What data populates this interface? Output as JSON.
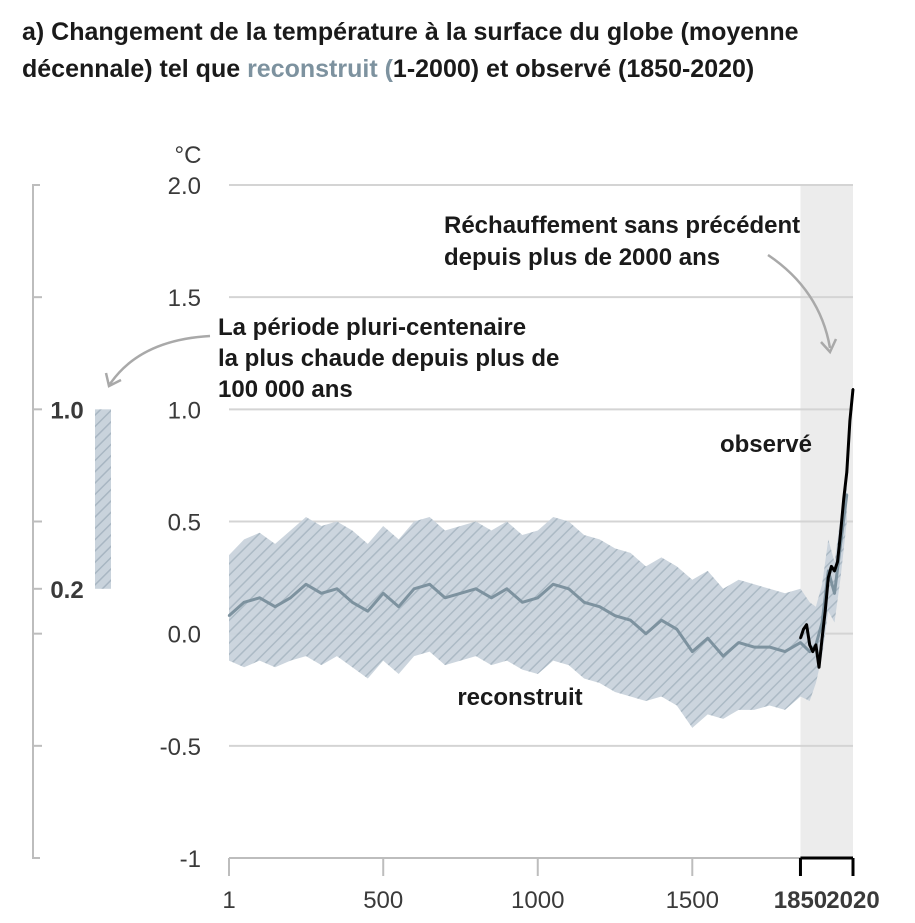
{
  "title": {
    "line1": "a) Changement de la température à la surface du globe (moyenne",
    "line2_pre": "décennale) tel que ",
    "line2_highlight": "reconstruit (",
    "line2_post": "1-2000) et observé (1850-2020)"
  },
  "colors": {
    "reconstructed": "#7d929f",
    "band_fill": "#c9d3dc",
    "band_hatch": "#a8b6c2",
    "observed": "#000000",
    "shaded_period": "#ececec",
    "grid": "#d4d4d4",
    "axis": "#bdbdbd"
  },
  "chart_data": {
    "type": "line",
    "title": "a) Changement de la température à la surface du globe (moyenne décennale) tel que reconstruit (1-2000) et observé (1850-2020)",
    "unit": "°C",
    "xlim": [
      1,
      2020
    ],
    "ylim": [
      -1,
      2
    ],
    "yticks": [
      "2.0",
      "1.5",
      "1.0",
      "0.5",
      "0.0",
      "-0.5",
      "-1"
    ],
    "xticks": [
      "1",
      "500",
      "1000",
      "1500",
      "1850",
      "2020"
    ],
    "grid": true,
    "shaded_period": [
      1850,
      2020
    ],
    "series": [
      {
        "name": "reconstruit",
        "x": [
          1,
          50,
          100,
          150,
          200,
          250,
          300,
          350,
          400,
          450,
          500,
          550,
          600,
          650,
          700,
          750,
          800,
          850,
          900,
          950,
          1000,
          1050,
          1100,
          1150,
          1200,
          1250,
          1300,
          1350,
          1400,
          1450,
          1500,
          1550,
          1600,
          1650,
          1700,
          1750,
          1800,
          1850,
          1880,
          1900,
          1920,
          1940,
          1960,
          1980,
          2000
        ],
        "values": [
          0.08,
          0.14,
          0.16,
          0.12,
          0.16,
          0.22,
          0.18,
          0.2,
          0.14,
          0.1,
          0.18,
          0.12,
          0.2,
          0.22,
          0.16,
          0.18,
          0.2,
          0.16,
          0.2,
          0.14,
          0.16,
          0.22,
          0.2,
          0.14,
          0.12,
          0.08,
          0.06,
          0.0,
          0.06,
          0.02,
          -0.08,
          -0.02,
          -0.1,
          -0.04,
          -0.06,
          -0.06,
          -0.08,
          -0.04,
          -0.08,
          -0.05,
          0.05,
          0.28,
          0.18,
          0.4,
          0.62
        ],
        "lower": [
          -0.12,
          -0.15,
          -0.12,
          -0.15,
          -0.12,
          -0.1,
          -0.14,
          -0.1,
          -0.15,
          -0.2,
          -0.12,
          -0.18,
          -0.1,
          -0.08,
          -0.14,
          -0.12,
          -0.1,
          -0.14,
          -0.12,
          -0.16,
          -0.18,
          -0.12,
          -0.14,
          -0.2,
          -0.22,
          -0.26,
          -0.28,
          -0.3,
          -0.28,
          -0.32,
          -0.42,
          -0.36,
          -0.38,
          -0.34,
          -0.34,
          -0.32,
          -0.34,
          -0.28,
          -0.3,
          -0.22,
          -0.1,
          0.1,
          0.05,
          0.25,
          0.5
        ],
        "upper": [
          0.35,
          0.42,
          0.45,
          0.4,
          0.46,
          0.52,
          0.48,
          0.5,
          0.46,
          0.4,
          0.48,
          0.42,
          0.5,
          0.52,
          0.46,
          0.48,
          0.5,
          0.46,
          0.5,
          0.44,
          0.46,
          0.52,
          0.5,
          0.44,
          0.42,
          0.38,
          0.36,
          0.3,
          0.34,
          0.3,
          0.24,
          0.28,
          0.2,
          0.24,
          0.22,
          0.2,
          0.18,
          0.2,
          0.14,
          0.12,
          0.22,
          0.42,
          0.32,
          0.52,
          0.72
        ]
      },
      {
        "name": "observé",
        "x": [
          1850,
          1860,
          1870,
          1880,
          1890,
          1900,
          1910,
          1920,
          1930,
          1940,
          1950,
          1960,
          1970,
          1980,
          1990,
          2000,
          2010,
          2020
        ],
        "values": [
          -0.02,
          0.02,
          0.04,
          -0.05,
          -0.08,
          -0.05,
          -0.15,
          -0.02,
          0.1,
          0.25,
          0.3,
          0.28,
          0.32,
          0.45,
          0.6,
          0.72,
          0.95,
          1.09
        ]
      }
    ],
    "annotations": {
      "reconstructed_label": "reconstruit",
      "observed_label": "observé",
      "unprecedented_line1": "Réchauffement sans précédent",
      "unprecedented_line2": "depuis plus de 2000 ans",
      "warmest_line1": "La période pluri-centenaire",
      "warmest_line2": "la plus chaude depuis plus de",
      "warmest_line3": "100 000 ans"
    },
    "side_range": {
      "max_label": "1.0",
      "min_label": "0.2",
      "range": [
        0.2,
        1.0
      ]
    }
  }
}
